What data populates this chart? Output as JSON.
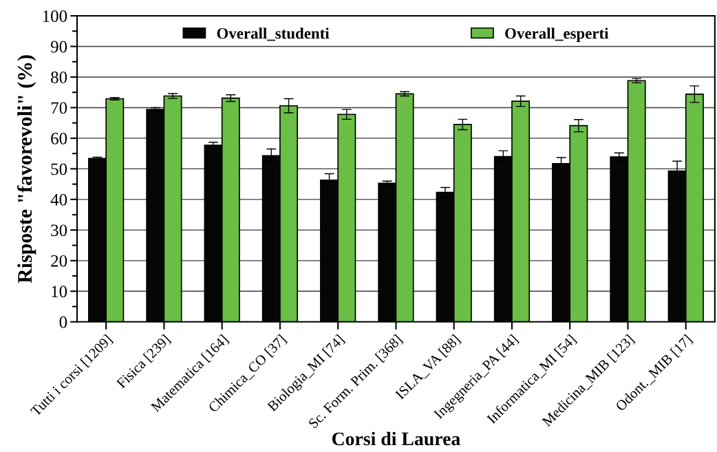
{
  "chart_data": {
    "type": "bar",
    "xlabel": "Corsi di Laurea",
    "ylabel": "Risposte \"favorevoli\" (%)",
    "categories": [
      "Tutti i corsi [1209]",
      "Fisica [239]",
      "Matematica [164]",
      "Chimica_CO [37]",
      "Biologia_MI [74]",
      "Sc. Form. Prim. [368]",
      "ISLA_VA [88]",
      "Ingegneria_PA [44]",
      "Informatica_MI [54]",
      "Medicina_MIB [123]",
      "Odont._MIB [17]"
    ],
    "series": [
      {
        "name": "Overall_studenti",
        "color": "#060606",
        "values": [
          53.4,
          69.4,
          57.7,
          54.3,
          46.3,
          45.3,
          42.3,
          54.0,
          51.7,
          53.9,
          49.3
        ],
        "errors": [
          0.4,
          0.6,
          1.0,
          2.2,
          2.1,
          0.7,
          1.6,
          1.9,
          2.0,
          1.3,
          3.2
        ]
      },
      {
        "name": "Overall_esperti",
        "color": "#6abd45",
        "values": [
          72.9,
          73.8,
          73.1,
          70.6,
          67.8,
          74.5,
          64.5,
          72.1,
          64.1,
          78.8,
          74.4
        ],
        "errors": [
          0.4,
          0.8,
          1.1,
          2.3,
          1.6,
          0.7,
          1.7,
          1.7,
          2.0,
          0.7,
          2.7
        ]
      }
    ],
    "ylim": [
      0,
      100
    ],
    "yticks": [
      0,
      {
        "value": 5,
        "label": null
      },
      10,
      {
        "value": 15,
        "label": null
      },
      20,
      {
        "value": 25,
        "label": null
      },
      30,
      {
        "value": 35,
        "label": null
      },
      40,
      {
        "value": 45,
        "label": null
      },
      50,
      {
        "value": 55,
        "label": null
      },
      60,
      {
        "value": 65,
        "label": null
      },
      70,
      {
        "value": 75,
        "label": null
      },
      80,
      {
        "value": 85,
        "label": null
      },
      90,
      {
        "value": 95,
        "label": null
      },
      100
    ],
    "grid": "y",
    "legend": "top"
  }
}
